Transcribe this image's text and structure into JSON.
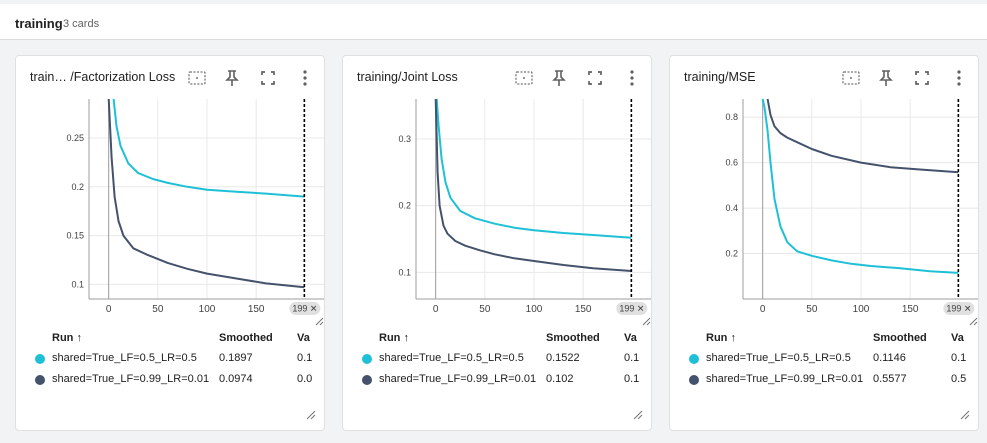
{
  "group": {
    "title": "training",
    "count": "3 cards"
  },
  "colors": {
    "run1": "#1ec0d6",
    "run2": "#44526b"
  },
  "table": {
    "col_run": "Run ↑",
    "col_smoothed": "Smoothed",
    "col_value": "Va"
  },
  "cards": [
    {
      "title": "train… /Factorization Loss",
      "yticks": [
        "0.25",
        "0.2",
        "0.15",
        "0.1"
      ],
      "xticks": [
        "0",
        "50",
        "100",
        "150"
      ],
      "step_badge": "199 ✕",
      "runs": [
        {
          "name": "shared=True_LF=0.5_LR=0.5",
          "smoothed": "0.1897",
          "value": "0.1"
        },
        {
          "name": "shared=True_LF=0.99_LR=0.01",
          "smoothed": "0.0974",
          "value": "0.0"
        }
      ]
    },
    {
      "title": "training/Joint Loss",
      "yticks": [
        "0.3",
        "0.2",
        "0.1"
      ],
      "xticks": [
        "0",
        "50",
        "100",
        "150"
      ],
      "step_badge": "199 ✕",
      "runs": [
        {
          "name": "shared=True_LF=0.5_LR=0.5",
          "smoothed": "0.1522",
          "value": "0.1"
        },
        {
          "name": "shared=True_LF=0.99_LR=0.01",
          "smoothed": "0.102",
          "value": "0.1"
        }
      ]
    },
    {
      "title": "training/MSE",
      "yticks": [
        "0.8",
        "0.6",
        "0.4",
        "0.2"
      ],
      "xticks": [
        "0",
        "50",
        "100",
        "150"
      ],
      "step_badge": "199 ✕",
      "runs": [
        {
          "name": "shared=True_LF=0.5_LR=0.5",
          "smoothed": "0.1146",
          "value": "0.1"
        },
        {
          "name": "shared=True_LF=0.99_LR=0.01",
          "smoothed": "0.5577",
          "value": "0.5"
        }
      ]
    }
  ],
  "chart_data": [
    {
      "type": "line",
      "title": "train… /Factorization Loss",
      "xlim": [
        -20,
        220
      ],
      "ylim": [
        0.085,
        0.29
      ],
      "series": [
        {
          "name": "shared=True_LF=0.5_LR=0.5",
          "x": [
            5,
            8,
            12,
            20,
            30,
            45,
            60,
            80,
            100,
            130,
            160,
            199
          ],
          "y": [
            0.29,
            0.262,
            0.242,
            0.224,
            0.214,
            0.208,
            0.204,
            0.2,
            0.197,
            0.195,
            0.193,
            0.19
          ]
        },
        {
          "name": "shared=True_LF=0.99_LR=0.01",
          "x": [
            0,
            3,
            6,
            10,
            15,
            25,
            40,
            60,
            80,
            100,
            130,
            160,
            199
          ],
          "y": [
            0.29,
            0.23,
            0.19,
            0.165,
            0.15,
            0.137,
            0.13,
            0.122,
            0.116,
            0.111,
            0.106,
            0.101,
            0.097
          ]
        }
      ]
    },
    {
      "type": "line",
      "title": "training/Joint Loss",
      "xlim": [
        -20,
        220
      ],
      "ylim": [
        0.06,
        0.36
      ],
      "series": [
        {
          "name": "shared=True_LF=0.5_LR=0.5",
          "x": [
            1,
            3,
            6,
            10,
            15,
            25,
            40,
            60,
            80,
            100,
            130,
            160,
            199
          ],
          "y": [
            0.36,
            0.32,
            0.27,
            0.235,
            0.212,
            0.192,
            0.181,
            0.173,
            0.167,
            0.163,
            0.159,
            0.156,
            0.152
          ]
        },
        {
          "name": "shared=True_LF=0.99_LR=0.01",
          "x": [
            0,
            2,
            4,
            8,
            12,
            20,
            30,
            45,
            60,
            80,
            100,
            130,
            160,
            199
          ],
          "y": [
            0.36,
            0.25,
            0.2,
            0.17,
            0.158,
            0.147,
            0.14,
            0.133,
            0.127,
            0.121,
            0.117,
            0.111,
            0.106,
            0.102
          ]
        }
      ]
    },
    {
      "type": "line",
      "title": "training/MSE",
      "xlim": [
        -20,
        220
      ],
      "ylim": [
        0.0,
        0.88
      ],
      "series": [
        {
          "name": "shared=True_LF=0.5_LR=0.5",
          "x": [
            0,
            2,
            5,
            8,
            12,
            18,
            25,
            35,
            50,
            70,
            90,
            110,
            140,
            170,
            199
          ],
          "y": [
            0.88,
            0.84,
            0.74,
            0.6,
            0.44,
            0.32,
            0.25,
            0.21,
            0.19,
            0.17,
            0.155,
            0.145,
            0.135,
            0.122,
            0.115
          ]
        },
        {
          "name": "shared=True_LF=0.99_LR=0.01",
          "x": [
            5,
            8,
            12,
            18,
            25,
            35,
            50,
            70,
            100,
            130,
            160,
            199
          ],
          "y": [
            0.88,
            0.81,
            0.76,
            0.73,
            0.71,
            0.69,
            0.66,
            0.63,
            0.6,
            0.58,
            0.57,
            0.558
          ]
        }
      ]
    }
  ]
}
